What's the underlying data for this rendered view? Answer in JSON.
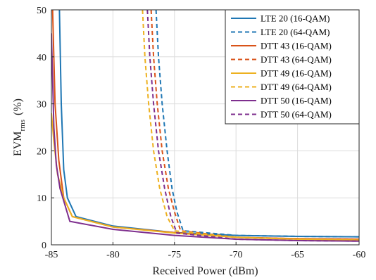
{
  "chart_data": {
    "type": "line",
    "xlabel": "Received Power  (dBm)",
    "ylabel_main": "EVM",
    "ylabel_sub": "rms",
    "ylabel_unit": "(%)",
    "xlim": [
      -85,
      -60
    ],
    "ylim": [
      0,
      50
    ],
    "xticks": [
      -85,
      -80,
      -75,
      -70,
      -65,
      -60
    ],
    "xtick_labels": [
      "-85",
      "-80",
      "-75",
      "-70",
      "-65",
      "-60"
    ],
    "yticks": [
      0,
      10,
      20,
      30,
      40,
      50
    ],
    "ytick_labels": [
      "0",
      "10",
      "20",
      "30",
      "40",
      "50"
    ],
    "grid": true,
    "legend_position": "top-right",
    "series": [
      {
        "name": "LTE 20 (16-QAM)",
        "color": "#1f77b4",
        "dash": false,
        "x": [
          -84.35,
          -84.2,
          -84.0,
          -83.7,
          -83.0,
          -80,
          -75,
          -70,
          -65,
          -60
        ],
        "y": [
          50,
          30,
          16,
          10,
          6,
          4,
          2.6,
          2.0,
          1.8,
          1.7
        ]
      },
      {
        "name": "LTE 20 (64-QAM)",
        "color": "#1f77b4",
        "dash": true,
        "x": [
          -76.5,
          -76.3,
          -76.0,
          -75.6,
          -75.2,
          -74.8,
          -74.3,
          -70,
          -65,
          -60
        ],
        "y": [
          50,
          40,
          30,
          20,
          12,
          7,
          3,
          2.0,
          1.8,
          1.7
        ]
      },
      {
        "name": "DTT 43 (16-QAM)",
        "color": "#d95319",
        "dash": false,
        "x": [
          -84.9,
          -84.7,
          -84.4,
          -84.0,
          -83.3,
          -80,
          -75,
          -70,
          -65,
          -60
        ],
        "y": [
          50,
          30,
          18,
          10,
          6,
          3.8,
          2.6,
          1.6,
          1.3,
          1.2
        ]
      },
      {
        "name": "DTT 43 (64-QAM)",
        "color": "#d95319",
        "dash": true,
        "x": [
          -76.9,
          -76.7,
          -76.4,
          -76.0,
          -75.5,
          -75.0,
          -74.5,
          -70,
          -65,
          -60
        ],
        "y": [
          50,
          40,
          30,
          20,
          12,
          7,
          3,
          1.6,
          1.3,
          1.2
        ]
      },
      {
        "name": "DTT 49 (16-QAM)",
        "color": "#edb120",
        "dash": false,
        "x": [
          -85.0,
          -84.8,
          -84.5,
          -84.0,
          -83.3,
          -80,
          -75,
          -70,
          -65,
          -60
        ],
        "y": [
          28,
          22,
          15,
          10,
          6,
          3.8,
          2.5,
          1.6,
          1.2,
          1.0
        ]
      },
      {
        "name": "DTT 49 (64-QAM)",
        "color": "#edb120",
        "dash": true,
        "x": [
          -77.6,
          -77.4,
          -77.1,
          -76.7,
          -76.2,
          -75.6,
          -75.0,
          -70,
          -65,
          -60
        ],
        "y": [
          50,
          40,
          30,
          20,
          12,
          6,
          3,
          1.6,
          1.2,
          1.0
        ]
      },
      {
        "name": "DTT 50 (16-QAM)",
        "color": "#7e2f8e",
        "dash": false,
        "x": [
          -85.0,
          -84.8,
          -84.6,
          -84.3,
          -83.5,
          -80,
          -75,
          -70,
          -65,
          -60
        ],
        "y": [
          45,
          25,
          17,
          12,
          5,
          3.3,
          2.0,
          1.2,
          0.9,
          0.8
        ]
      },
      {
        "name": "DTT 50 (64-QAM)",
        "color": "#7e2f8e",
        "dash": true,
        "x": [
          -77.2,
          -77.0,
          -76.7,
          -76.3,
          -75.8,
          -75.3,
          -74.8,
          -70,
          -65,
          -60
        ],
        "y": [
          50,
          40,
          30,
          20,
          12,
          6,
          2.5,
          1.2,
          0.9,
          0.8
        ]
      }
    ]
  }
}
